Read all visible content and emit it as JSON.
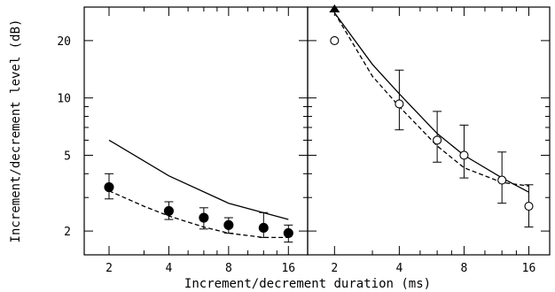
{
  "chart_data": {
    "type": "line",
    "xlabel": "Increment/decrement duration (ms)",
    "ylabel": "Increment/decrement level (dB)",
    "x_scale": "log",
    "y_scale": "log",
    "xlim": [
      1.5,
      20
    ],
    "ylim": [
      1.5,
      30
    ],
    "x_ticks": [
      2,
      4,
      8,
      16
    ],
    "x_tick_labels": [
      "2",
      "4",
      "8",
      "16"
    ],
    "y_ticks": [
      2,
      5,
      10,
      20
    ],
    "y_tick_labels": [
      "2",
      "5",
      "10",
      "20"
    ],
    "panels": [
      {
        "name": "left",
        "points": {
          "marker": "filled-circle",
          "x": [
            2,
            4,
            6,
            8,
            12,
            16
          ],
          "y": [
            3.4,
            2.55,
            2.35,
            2.15,
            2.08,
            1.95
          ],
          "err_low": [
            2.95,
            2.3,
            2.05,
            1.95,
            1.85,
            1.75
          ],
          "err_high": [
            4.0,
            2.85,
            2.65,
            2.35,
            2.5,
            2.15
          ]
        },
        "solid_line": {
          "x": [
            2,
            4,
            8,
            16
          ],
          "y": [
            6.0,
            3.9,
            2.8,
            2.3
          ]
        },
        "dashed_line": {
          "x": [
            2,
            3,
            4,
            6,
            8,
            12,
            16
          ],
          "y": [
            3.25,
            2.7,
            2.4,
            2.1,
            1.95,
            1.85,
            1.85
          ]
        }
      },
      {
        "name": "right",
        "points": {
          "marker": "open-circle",
          "x": [
            2,
            4,
            6,
            8,
            12,
            16
          ],
          "y": [
            20,
            9.3,
            6.0,
            5.0,
            3.7,
            2.7
          ],
          "err_low": [
            20,
            6.8,
            4.6,
            3.8,
            2.8,
            2.1
          ],
          "err_high": [
            20,
            14,
            8.5,
            7.2,
            5.2,
            3.5
          ]
        },
        "solid_line": {
          "x": [
            2,
            3,
            4,
            6,
            8,
            12,
            16
          ],
          "y": [
            28,
            15,
            10.5,
            6.5,
            5.0,
            3.8,
            3.2
          ]
        },
        "dashed_line": {
          "x": [
            2,
            3,
            4,
            6,
            8,
            12,
            16
          ],
          "y": [
            28,
            13,
            9.0,
            5.6,
            4.3,
            3.6,
            3.45
          ]
        },
        "arrow_marker": {
          "x": 2,
          "y": 30
        }
      }
    ]
  }
}
